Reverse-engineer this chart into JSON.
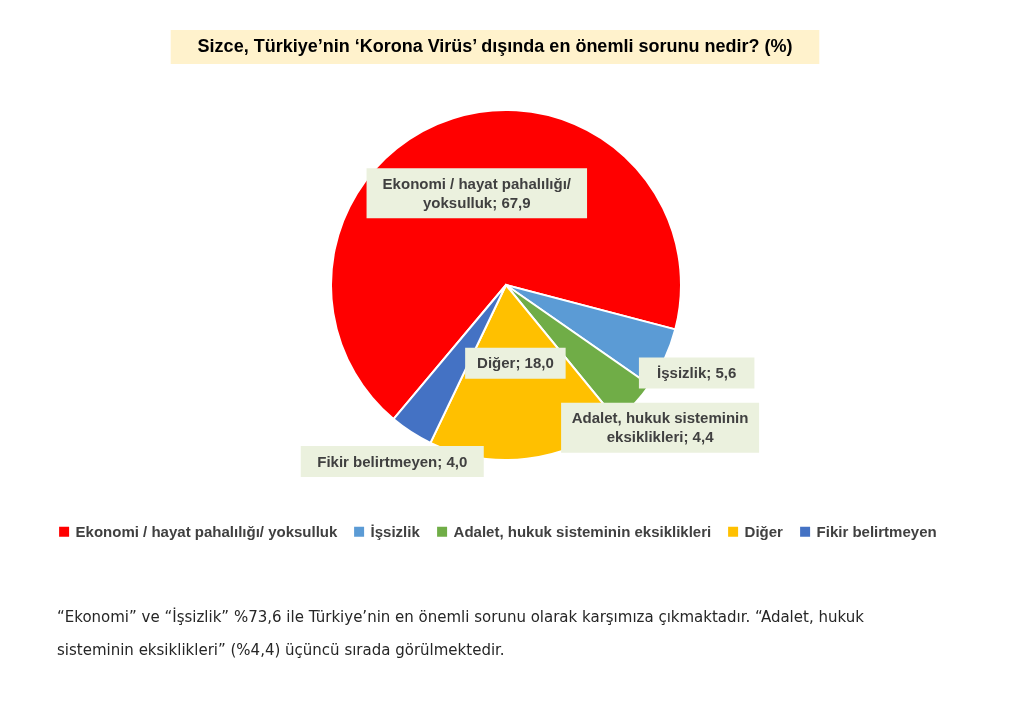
{
  "chart_data": {
    "type": "pie",
    "title": "Sizce, Türkiye’nin ‘Korona Virüs’ dışında en önemli sorunu nedir? (%)",
    "categories": [
      "Ekonomi / hayat pahalılığı/ yoksulluk",
      "İşsizlik",
      "Adalet, hukuk sisteminin eksiklikleri",
      "Diğer",
      "Fikir belirtmeyen"
    ],
    "values": [
      67.9,
      5.6,
      4.4,
      18.0,
      4.0
    ],
    "colors": [
      "#ff0000",
      "#5b9bd5",
      "#70ad47",
      "#ffc000",
      "#4472c4"
    ],
    "value_labels": [
      "Ekonomi / hayat pahalılığı/ yoksulluk; 67,9",
      "İşsizlik; 5,6",
      "Adalet, hukuk sisteminin eksiklikleri; 4,4",
      "Diğer; 18,0",
      "Fikir belirtmeyen; 4,0"
    ],
    "legend": "bottom",
    "annotations": [
      "“Ekonomi” ve “İşsizlik” %73,6 ile Türkiye’nin en önemli sorunu olarak karşımıza çıkmaktadır. “Adalet, hukuk sisteminin eksiklikleri” (%4,4) üçüncü sırada görülmektedir."
    ]
  }
}
